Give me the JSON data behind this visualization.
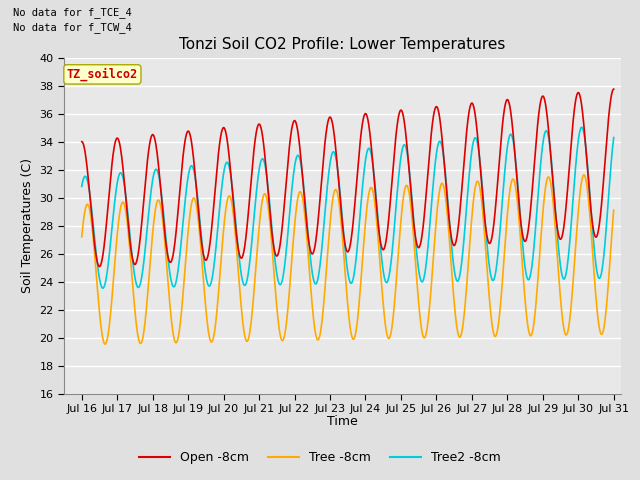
{
  "title": "Tonzi Soil CO2 Profile: Lower Temperatures",
  "ylabel": "Soil Temperatures (C)",
  "xlabel": "Time",
  "annotations": [
    "No data for f_TCE_4",
    "No data for f_TCW_4"
  ],
  "watermark": "TZ_soilco2",
  "ylim": [
    16,
    40
  ],
  "yticks": [
    16,
    18,
    20,
    22,
    24,
    26,
    28,
    30,
    32,
    34,
    36,
    38,
    40
  ],
  "xlim_start": 15.5,
  "xlim_end": 31.2,
  "xtick_labels": [
    "Jul 16",
    "Jul 17",
    "Jul 18",
    "Jul 19",
    "Jul 20",
    "Jul 21",
    "Jul 22",
    "Jul 23",
    "Jul 24",
    "Jul 25",
    "Jul 26",
    "Jul 27",
    "Jul 28",
    "Jul 29",
    "Jul 30",
    "Jul 31"
  ],
  "xtick_positions": [
    16,
    17,
    18,
    19,
    20,
    21,
    22,
    23,
    24,
    25,
    26,
    27,
    28,
    29,
    30,
    31
  ],
  "colors": {
    "open": "#dd0000",
    "tree": "#ffaa00",
    "tree2": "#00ccdd"
  },
  "legend_labels": [
    "Open -8cm",
    "Tree -8cm",
    "Tree2 -8cm"
  ],
  "bg_color": "#e0e0e0",
  "plot_bg": "#e8e8e8",
  "grid_color": "#ffffff",
  "watermark_bg": "#ffffcc",
  "watermark_border": "#aaaa00",
  "title_fontsize": 11,
  "axis_fontsize": 9,
  "tick_fontsize": 8,
  "legend_fontsize": 9
}
